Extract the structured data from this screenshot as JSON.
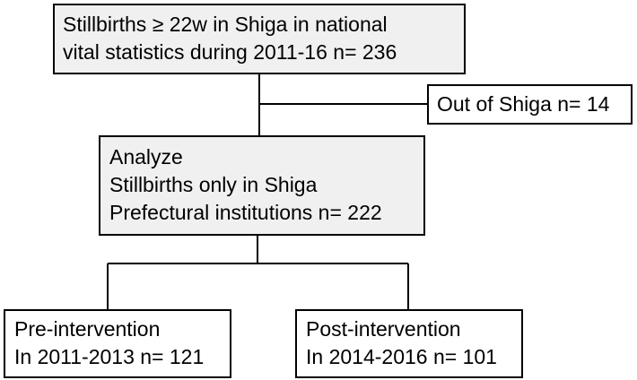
{
  "boxes": {
    "top": {
      "lines": [
        "Stillbirths  ≥ 22w in Shiga in national",
        "vital statistics during 2011-16  n= 236"
      ]
    },
    "out": {
      "lines": [
        "Out of Shiga n= 14"
      ]
    },
    "analyze": {
      "lines": [
        "Analyze",
        "Stillbirths only in Shiga",
        "Prefectural institutions n= 222"
      ]
    },
    "pre": {
      "lines": [
        "Pre-intervention",
        "In 2011-2013 n= 121"
      ]
    },
    "post": {
      "lines": [
        "Post-intervention",
        "In 2014-2016 n= 101"
      ]
    }
  },
  "colors": {
    "box_fill": "#f0f0f0",
    "line": "#000000"
  }
}
